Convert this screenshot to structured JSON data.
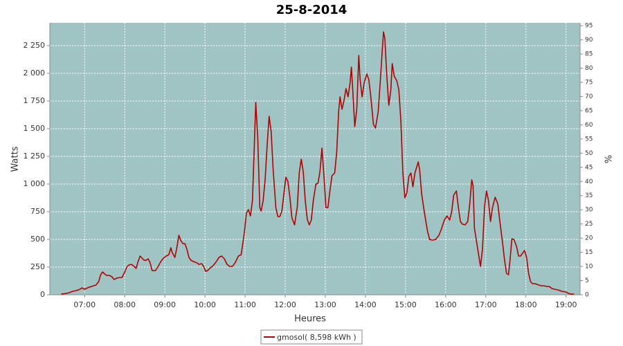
{
  "chart_data": {
    "type": "line",
    "title": "25-8-2014",
    "x_label": "Heures",
    "y_label": "Watts",
    "y2_label": "%",
    "x": [
      "06:25",
      "06:32",
      "06:37",
      "06:42",
      "06:48",
      "06:53",
      "06:56",
      "07:00",
      "07:04",
      "07:10",
      "07:17",
      "07:21",
      "07:24",
      "07:27",
      "07:30",
      "07:33",
      "07:37",
      "07:41",
      "07:44",
      "07:48",
      "07:52",
      "07:56",
      "08:00",
      "08:03",
      "08:06",
      "08:10",
      "08:13",
      "08:17",
      "08:20",
      "08:23",
      "08:26",
      "08:29",
      "08:32",
      "08:35",
      "08:38",
      "08:41",
      "08:46",
      "08:50",
      "08:54",
      "08:58",
      "09:02",
      "09:06",
      "09:09",
      "09:11",
      "09:15",
      "09:18",
      "09:21",
      "09:24",
      "09:27",
      "09:30",
      "09:33",
      "09:36",
      "09:39",
      "09:43",
      "09:48",
      "09:51",
      "09:55",
      "09:58",
      "10:01",
      "10:04",
      "10:08",
      "10:12",
      "10:17",
      "10:21",
      "10:25",
      "10:29",
      "10:33",
      "10:37",
      "10:41",
      "10:45",
      "10:50",
      "10:54",
      "10:56",
      "10:59",
      "11:02",
      "11:05",
      "11:08",
      "11:11",
      "11:16",
      "11:19",
      "11:22",
      "11:24",
      "11:27",
      "11:30",
      "11:33",
      "11:36",
      "11:39",
      "11:42",
      "11:46",
      "11:49",
      "11:52",
      "11:55",
      "11:58",
      "12:01",
      "12:04",
      "12:07",
      "12:10",
      "12:14",
      "12:18",
      "12:21",
      "12:24",
      "12:27",
      "12:30",
      "12:33",
      "12:36",
      "12:39",
      "12:42",
      "12:46",
      "12:49",
      "12:52",
      "12:55",
      "12:58",
      "13:01",
      "13:04",
      "13:07",
      "13:10",
      "13:14",
      "13:17",
      "13:20",
      "13:22",
      "13:25",
      "13:28",
      "13:31",
      "13:34",
      "13:37",
      "13:39",
      "13:41",
      "13:44",
      "13:47",
      "13:50",
      "13:52",
      "13:55",
      "13:58",
      "14:02",
      "14:05",
      "14:08",
      "14:12",
      "14:15",
      "14:19",
      "14:22",
      "14:25",
      "14:27",
      "14:29",
      "14:32",
      "14:35",
      "14:38",
      "14:40",
      "14:43",
      "14:47",
      "14:50",
      "14:53",
      "14:56",
      "14:59",
      "15:02",
      "15:05",
      "15:08",
      "15:11",
      "15:14",
      "15:19",
      "15:21",
      "15:24",
      "15:27",
      "15:30",
      "15:33",
      "15:36",
      "15:40",
      "15:45",
      "15:50",
      "15:54",
      "15:58",
      "16:02",
      "16:06",
      "16:09",
      "16:12",
      "16:16",
      "16:19",
      "16:22",
      "16:25",
      "16:29",
      "16:33",
      "16:36",
      "16:39",
      "16:41",
      "16:43",
      "16:48",
      "16:52",
      "16:55",
      "16:58",
      "17:01",
      "17:04",
      "17:07",
      "17:10",
      "17:14",
      "17:18",
      "17:21",
      "17:25",
      "17:28",
      "17:31",
      "17:34",
      "17:36",
      "17:39",
      "17:42",
      "17:46",
      "17:49",
      "17:52",
      "17:55",
      "17:58",
      "18:01",
      "18:04",
      "18:07",
      "18:10",
      "18:14",
      "18:19",
      "18:23",
      "18:27",
      "18:31",
      "18:35",
      "18:39",
      "18:43",
      "18:48",
      "18:54",
      "19:00",
      "19:04",
      "19:08",
      "19:12"
    ],
    "series": [
      {
        "name": "gmosol( 8,598 kWh )",
        "color": "#b00000",
        "values": [
          6,
          12,
          19,
          31,
          38,
          50,
          62,
          50,
          62,
          75,
          88,
          119,
          181,
          206,
          188,
          175,
          175,
          162,
          138,
          150,
          156,
          156,
          206,
          250,
          269,
          275,
          262,
          238,
          300,
          350,
          331,
          312,
          312,
          325,
          288,
          219,
          219,
          256,
          300,
          331,
          350,
          362,
          425,
          381,
          338,
          425,
          538,
          488,
          462,
          462,
          412,
          338,
          312,
          300,
          288,
          275,
          281,
          256,
          212,
          219,
          244,
          262,
          300,
          338,
          350,
          325,
          275,
          256,
          256,
          288,
          350,
          362,
          438,
          569,
          738,
          769,
          712,
          850,
          1738,
          1412,
          788,
          756,
          850,
          1038,
          1350,
          1612,
          1475,
          1131,
          788,
          706,
          706,
          756,
          912,
          1062,
          1025,
          881,
          694,
          631,
          788,
          1100,
          1225,
          1112,
          850,
          681,
          631,
          675,
          850,
          1000,
          1006,
          1112,
          1325,
          1069,
          788,
          788,
          944,
          1075,
          1100,
          1288,
          1662,
          1788,
          1675,
          1756,
          1862,
          1788,
          1912,
          2056,
          1850,
          1519,
          1675,
          2162,
          1944,
          1788,
          1912,
          1994,
          1944,
          1788,
          1538,
          1506,
          1650,
          1912,
          2194,
          2375,
          2319,
          1975,
          1712,
          1850,
          2088,
          1975,
          1931,
          1850,
          1569,
          1100,
          875,
          925,
          1069,
          1100,
          975,
          1100,
          1200,
          1131,
          912,
          788,
          675,
          569,
          500,
          494,
          500,
          538,
          600,
          675,
          712,
          675,
          750,
          900,
          938,
          788,
          662,
          638,
          631,
          662,
          819,
          1038,
          988,
          600,
          412,
          256,
          412,
          788,
          938,
          850,
          662,
          788,
          881,
          819,
          662,
          475,
          319,
          194,
          181,
          300,
          506,
          500,
          438,
          350,
          350,
          375,
          400,
          338,
          194,
          119,
          100,
          100,
          88,
          81,
          81,
          75,
          75,
          56,
          50,
          44,
          31,
          25,
          12,
          6,
          6
        ]
      }
    ],
    "xlim": [
      "06:08",
      "19:21"
    ],
    "xticks": [
      "07:00",
      "08:00",
      "09:00",
      "10:00",
      "11:00",
      "12:00",
      "13:00",
      "14:00",
      "15:00",
      "16:00",
      "17:00",
      "18:00",
      "19:00"
    ],
    "ylim": [
      0,
      2456
    ],
    "yticks": [
      0,
      250,
      500,
      750,
      {
        "value": 1000,
        "label": "1 000"
      },
      {
        "value": 1250,
        "label": "1 250"
      },
      {
        "value": 1500,
        "label": "1 500"
      },
      {
        "value": 1750,
        "label": "1 750"
      },
      {
        "value": 2000,
        "label": "2 000"
      },
      {
        "value": 2250,
        "label": "2 250"
      }
    ],
    "y2lim": [
      0,
      96
    ],
    "y2ticks": [
      0,
      5,
      10,
      15,
      20,
      25,
      30,
      35,
      40,
      45,
      50,
      55,
      60,
      65,
      70,
      75,
      80,
      85,
      90,
      95
    ],
    "grid": true,
    "background": "#a0c4c4",
    "legend": "bottom"
  }
}
